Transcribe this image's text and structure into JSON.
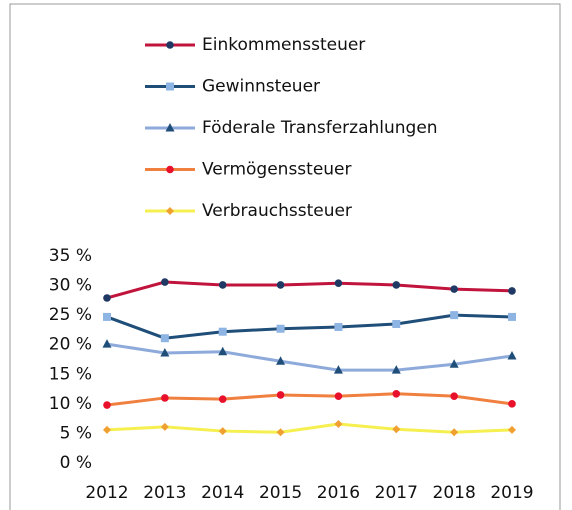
{
  "chart_data": {
    "type": "line",
    "categories": [
      "2012",
      "2013",
      "2014",
      "2015",
      "2016",
      "2017",
      "2018",
      "2019"
    ],
    "series": [
      {
        "name": "Einkommenssteuer",
        "color": "#c0143c",
        "marker": "circle",
        "marker_color": "#1f3864",
        "values": [
          27.9,
          30.6,
          30.1,
          30.1,
          30.4,
          30.1,
          29.4,
          29.1
        ]
      },
      {
        "name": "Gewinnsteuer",
        "color": "#1f4e79",
        "marker": "square",
        "marker_color": "#8eb4e3",
        "values": [
          24.7,
          21.1,
          22.2,
          22.7,
          23.0,
          23.5,
          25.0,
          24.7
        ]
      },
      {
        "name": "Föderale Transferzahlungen",
        "color": "#8eaadb",
        "marker": "triangle",
        "marker_color": "#1f4e79",
        "values": [
          20.1,
          18.6,
          18.8,
          17.2,
          15.7,
          15.7,
          16.7,
          18.1
        ]
      },
      {
        "name": "Vermögenssteuer",
        "color": "#f08040",
        "marker": "circle",
        "marker_color": "#e8102a",
        "values": [
          9.8,
          11.0,
          10.8,
          11.5,
          11.3,
          11.7,
          11.3,
          10.0
        ]
      },
      {
        "name": "Verbrauchssteuer",
        "color": "#f5ef50",
        "marker": "diamond",
        "marker_color": "#f0a030",
        "values": [
          5.6,
          6.1,
          5.4,
          5.2,
          6.6,
          5.7,
          5.2,
          5.6
        ]
      }
    ],
    "ylim": [
      0,
      35
    ],
    "yticks": [
      {
        "value": 0,
        "label": "0 %"
      },
      {
        "value": 5,
        "label": "5 %"
      },
      {
        "value": 10,
        "label": "10 %"
      },
      {
        "value": 15,
        "label": "15 %"
      },
      {
        "value": 20,
        "label": "20 %"
      },
      {
        "value": 25,
        "label": "25 %"
      },
      {
        "value": 30,
        "label": "30 %"
      },
      {
        "value": 35,
        "label": "35 %"
      }
    ],
    "grid": false,
    "legend": "top"
  }
}
